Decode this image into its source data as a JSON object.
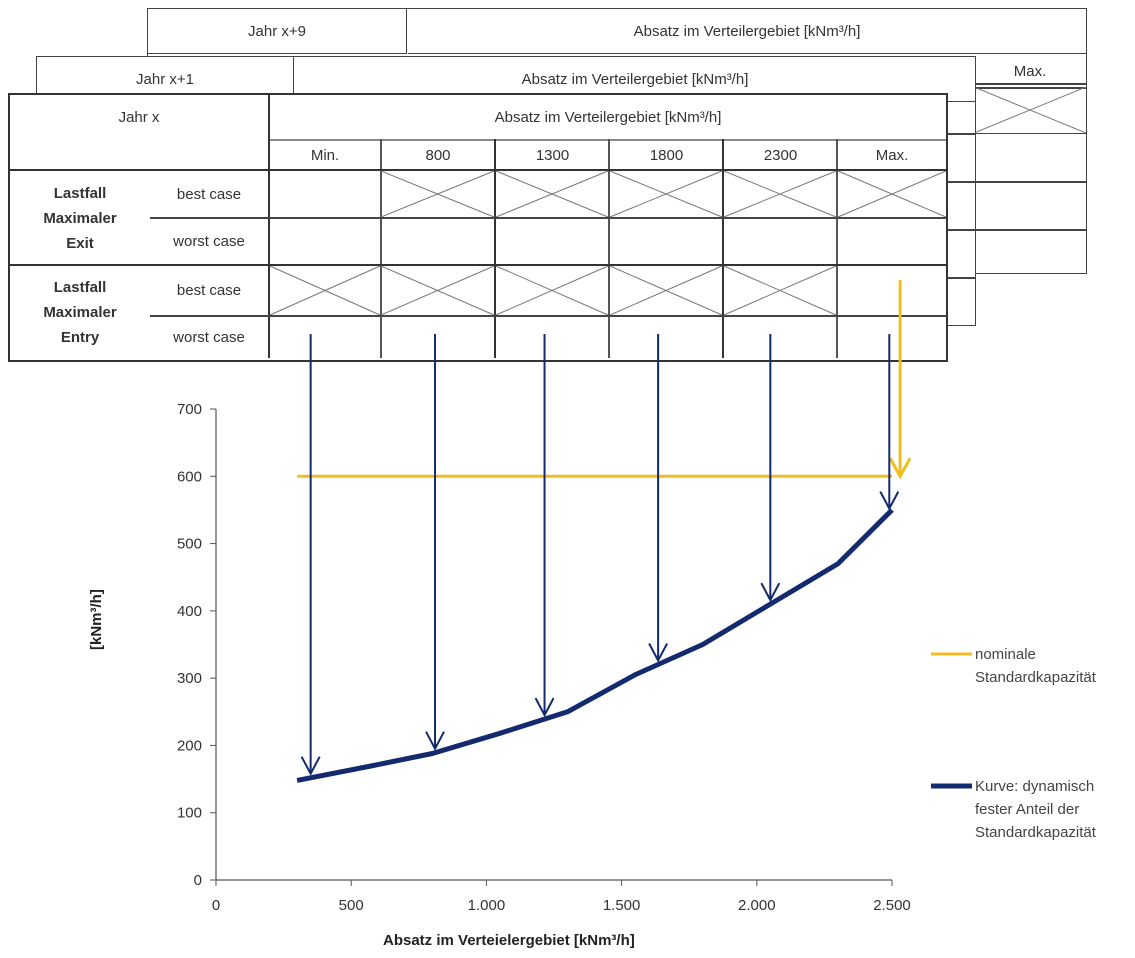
{
  "tables": {
    "back": {
      "year": "Jahr x+9",
      "header": "Absatz im Verteilergebiet [kNm³/h]",
      "max": "Max."
    },
    "mid": {
      "year": "Jahr x+1",
      "header": "Absatz im Verteilergebiet [kNm³/h]"
    },
    "front": {
      "year": "Jahr x",
      "header": "Absatz im Verteilergebiet [kNm³/h]",
      "columns": [
        "Min.",
        "800",
        "1300",
        "1800",
        "2300",
        "Max."
      ],
      "groups": [
        {
          "name_lines": [
            "Lastfall",
            "Maximaler",
            "Exit"
          ],
          "rows": [
            "best case",
            "worst case"
          ]
        },
        {
          "name_lines": [
            "Lastfall",
            "Maximaler",
            "Entry"
          ],
          "rows": [
            "best case",
            "worst case"
          ]
        }
      ]
    }
  },
  "chart_data": {
    "type": "line",
    "xlabel": "Absatz im Verteielergebiet [kNm³/h]",
    "ylabel": "[kNm³/h]",
    "xlim": [
      0,
      2500
    ],
    "ylim": [
      0,
      700
    ],
    "x_ticks": [
      "0",
      "500",
      "1.000",
      "1.500",
      "2.000",
      "2.500"
    ],
    "y_ticks": [
      "0",
      "100",
      "200",
      "300",
      "400",
      "500",
      "600",
      "700"
    ],
    "series": [
      {
        "name": "nominale Standardkapazität",
        "color": "#f0be1e",
        "x": [
          300,
          2500
        ],
        "y": [
          600,
          600
        ]
      },
      {
        "name": "Kurve: dynamisch fester Anteil der Standardkapazität",
        "color": "#132a6e",
        "x": [
          300,
          580,
          800,
          1050,
          1300,
          1550,
          1800,
          2050,
          2300,
          2500
        ],
        "y": [
          148,
          170,
          188,
          218,
          250,
          305,
          350,
          410,
          470,
          550
        ]
      }
    ],
    "arrows_x": [
      350,
      810,
      1215,
      1635,
      2050,
      2490
    ],
    "legend": {
      "position": "right",
      "entries": [
        {
          "lines": [
            "nominale",
            "Standardkapazität"
          ],
          "color": "#f0be1e"
        },
        {
          "lines": [
            "Kurve: dynamisch",
            "fester Anteil der",
            "Standardkapazität"
          ],
          "color": "#132a6e"
        }
      ]
    }
  }
}
